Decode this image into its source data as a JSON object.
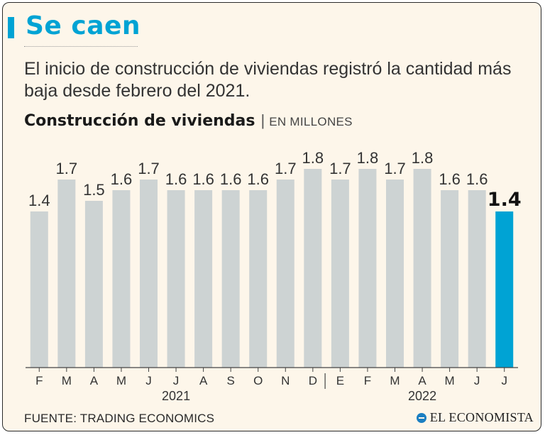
{
  "headline": "Se caen",
  "subtitle": "El inicio de construcción de viviendas registró la cantidad más baja desde febrero del 2021.",
  "chart_header": {
    "title": "Construcción de viviendas",
    "separator": "|",
    "unit": "EN MILLONES"
  },
  "source": "FUENTE: TRADING ECONOMICS",
  "logo": "EL ECONOMISTA",
  "colors": {
    "accent": "#00a3d4",
    "bar": "#cdd3d3",
    "highlight": "#00a3d4",
    "text": "#333333",
    "background": "#fdf6ea"
  },
  "chart_data": {
    "type": "bar",
    "title": "Construcción de viviendas",
    "unit": "EN MILLONES",
    "categories": [
      "F",
      "M",
      "A",
      "M",
      "J",
      "J",
      "A",
      "S",
      "O",
      "N",
      "D",
      "E",
      "F",
      "M",
      "A",
      "M",
      "J",
      "J"
    ],
    "values": [
      1.4,
      1.7,
      1.5,
      1.6,
      1.7,
      1.6,
      1.6,
      1.6,
      1.6,
      1.7,
      1.8,
      1.7,
      1.8,
      1.7,
      1.8,
      1.6,
      1.6,
      1.4
    ],
    "labels": [
      "1.4",
      "1.7",
      "1.5",
      "1.6",
      "1.7",
      "1.6",
      "1.6",
      "1.6",
      "1.6",
      "1.7",
      "1.8",
      "1.7",
      "1.8",
      "1.7",
      "1.8",
      "1.6",
      "1.6",
      "1.4"
    ],
    "highlight_index": 17,
    "year_groups": [
      {
        "label": "2021",
        "start": 0,
        "end": 10
      },
      {
        "label": "2022",
        "start": 11,
        "end": 17
      }
    ],
    "xlabel": "",
    "ylabel": "",
    "ylim": [
      0,
      2.0
    ],
    "grid": false
  }
}
